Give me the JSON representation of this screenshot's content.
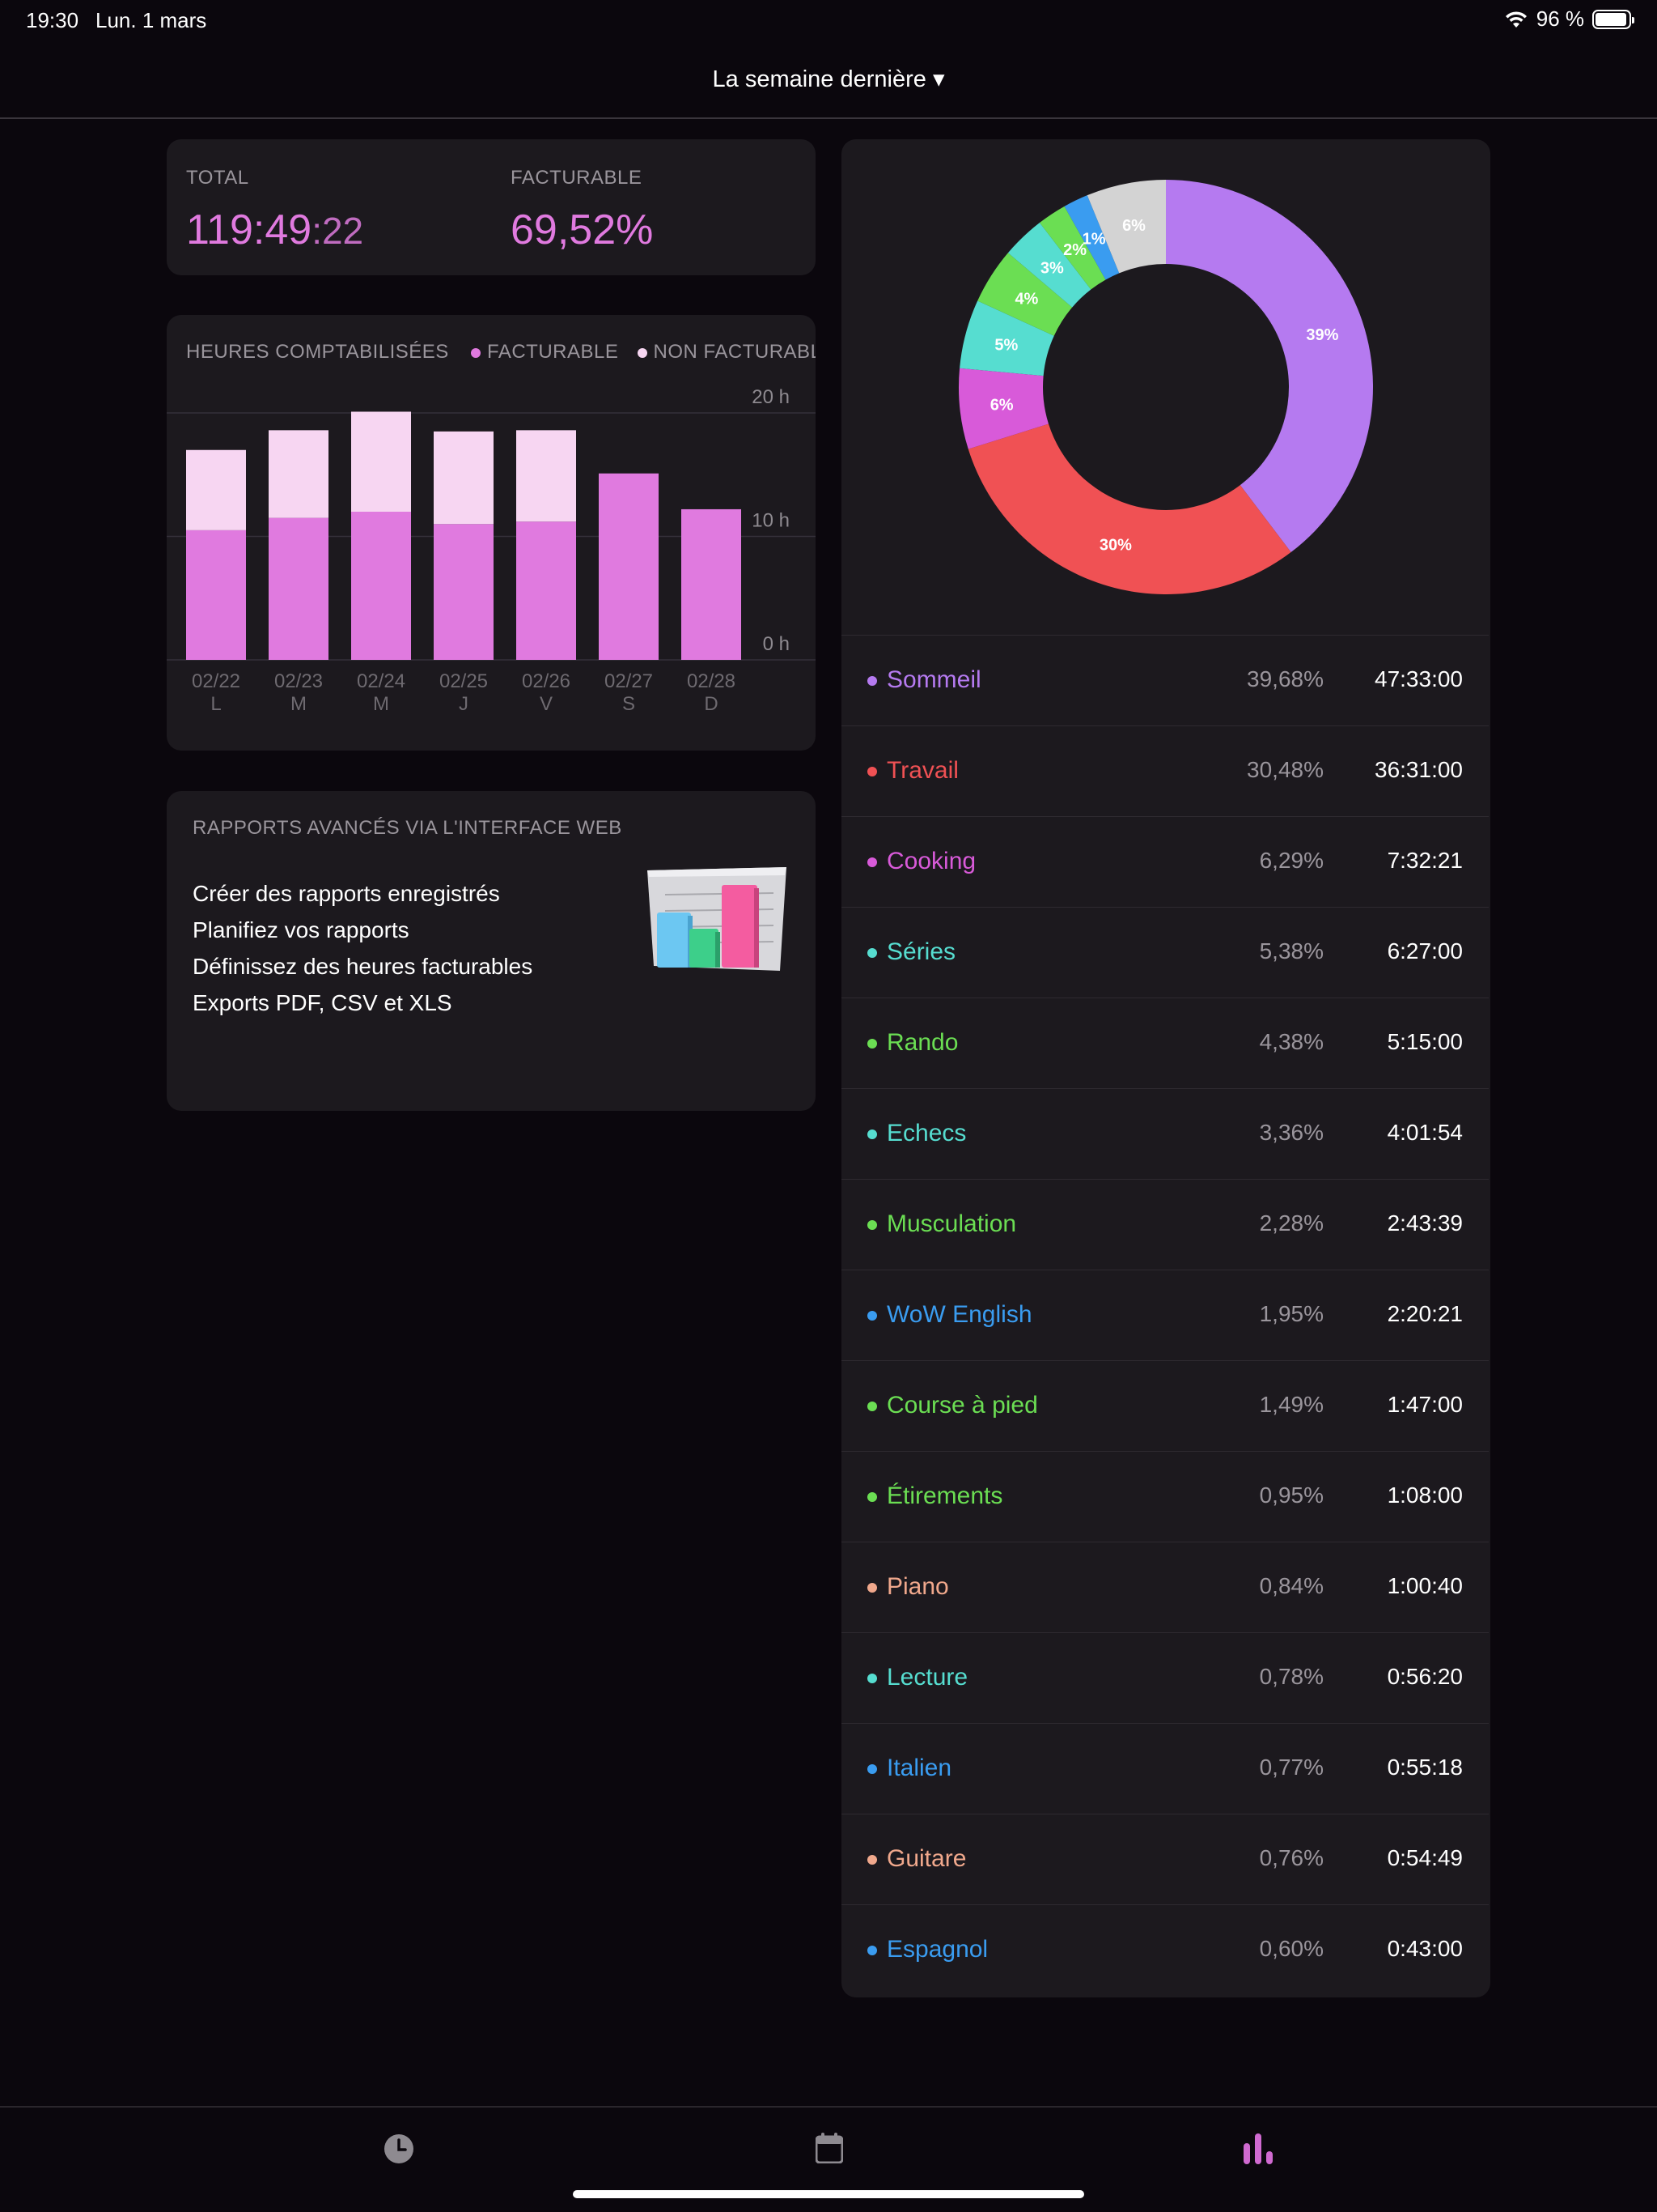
{
  "status_bar": {
    "time": "19:30",
    "date": "Lun. 1 mars",
    "battery": "96 %",
    "battery_level": 0.96
  },
  "header": {
    "title": "La semaine dernière ▾"
  },
  "totals": {
    "total_label": "TOTAL",
    "total_hm": "119:49",
    "total_s": ":22",
    "billable_label": "FACTURABLE",
    "billable_value": "69,52%"
  },
  "hours_chart": {
    "title": "HEURES COMPTABILISÉES",
    "legend_billable": "FACTURABLE",
    "legend_nonbillable": "NON FACTURABLE",
    "colors": {
      "billable": "#e07adf",
      "nonbillable": "#f7d6f2"
    }
  },
  "chart_data": {
    "type": "bar",
    "stacked": true,
    "title": "HEURES COMPTABILISÉES",
    "categories": [
      "02/22",
      "02/23",
      "02/24",
      "02/25",
      "02/26",
      "02/27",
      "02/28"
    ],
    "day_letters": [
      "L",
      "M",
      "M",
      "J",
      "V",
      "S",
      "D"
    ],
    "series": [
      {
        "name": "FACTURABLE",
        "values": [
          10.5,
          11.5,
          12.0,
          11.0,
          11.2,
          15.1,
          12.2
        ]
      },
      {
        "name": "NON FACTURABLE",
        "values": [
          6.5,
          7.1,
          8.1,
          7.5,
          7.4,
          0,
          0
        ]
      }
    ],
    "ylim": [
      0,
      20
    ],
    "yticks": [
      "20 h",
      "10 h",
      "0 h"
    ],
    "grid": true
  },
  "reports_card": {
    "title": "RAPPORTS AVANCÉS VIA L'INTERFACE WEB",
    "lines": [
      "Créer des rapports enregistrés",
      "Planifiez vos rapports",
      "Définissez des heures facturables",
      "Exports PDF, CSV et XLS"
    ]
  },
  "donut": {
    "slices": [
      {
        "label": "39%",
        "value": 39.68,
        "color": "#b57af0"
      },
      {
        "label": "30%",
        "value": 30.48,
        "color": "#f05154"
      },
      {
        "label": "6%",
        "value": 6.29,
        "color": "#d85ad9"
      },
      {
        "label": "5%",
        "value": 5.38,
        "color": "#56ddd0"
      },
      {
        "label": "4%",
        "value": 4.38,
        "color": "#6bde53"
      },
      {
        "label": "3%",
        "value": 3.36,
        "color": "#56ddd0"
      },
      {
        "label": "2%",
        "value": 2.28,
        "color": "#6bde53"
      },
      {
        "label": "1%",
        "value": 1.95,
        "color": "#3a9cf0"
      },
      {
        "label": "6%",
        "value": 6.2,
        "color": "#d3d3d3"
      }
    ]
  },
  "activities": [
    {
      "name": "Sommeil",
      "pct": "39,68%",
      "time": "47:33:00",
      "color": "#b57af0"
    },
    {
      "name": "Travail",
      "pct": "30,48%",
      "time": "36:31:00",
      "color": "#f05154"
    },
    {
      "name": "Cooking",
      "pct": "6,29%",
      "time": "7:32:21",
      "color": "#d85ad9"
    },
    {
      "name": "Séries",
      "pct": "5,38%",
      "time": "6:27:00",
      "color": "#56ddd0"
    },
    {
      "name": "Rando",
      "pct": "4,38%",
      "time": "5:15:00",
      "color": "#6bde53"
    },
    {
      "name": "Echecs",
      "pct": "3,36%",
      "time": "4:01:54",
      "color": "#56ddd0"
    },
    {
      "name": "Musculation",
      "pct": "2,28%",
      "time": "2:43:39",
      "color": "#6bde53"
    },
    {
      "name": "WoW English",
      "pct": "1,95%",
      "time": "2:20:21",
      "color": "#3a9cf0"
    },
    {
      "name": "Course à pied",
      "pct": "1,49%",
      "time": "1:47:00",
      "color": "#6bde53"
    },
    {
      "name": "Étirements",
      "pct": "0,95%",
      "time": "1:08:00",
      "color": "#6bde53"
    },
    {
      "name": "Piano",
      "pct": "0,84%",
      "time": "1:00:40",
      "color": "#f0a88c"
    },
    {
      "name": "Lecture",
      "pct": "0,78%",
      "time": "0:56:20",
      "color": "#56ddd0"
    },
    {
      "name": "Italien",
      "pct": "0,77%",
      "time": "0:55:18",
      "color": "#3a9cf0"
    },
    {
      "name": "Guitare",
      "pct": "0,76%",
      "time": "0:54:49",
      "color": "#f0a88c"
    },
    {
      "name": "Espagnol",
      "pct": "0,60%",
      "time": "0:43:00",
      "color": "#3a9cf0"
    }
  ],
  "tabbar": {
    "icons": [
      "clock-icon",
      "calendar-icon",
      "bar-chart-icon"
    ],
    "active_color": "#d06ad0",
    "inactive_color": "#8e8a90"
  }
}
